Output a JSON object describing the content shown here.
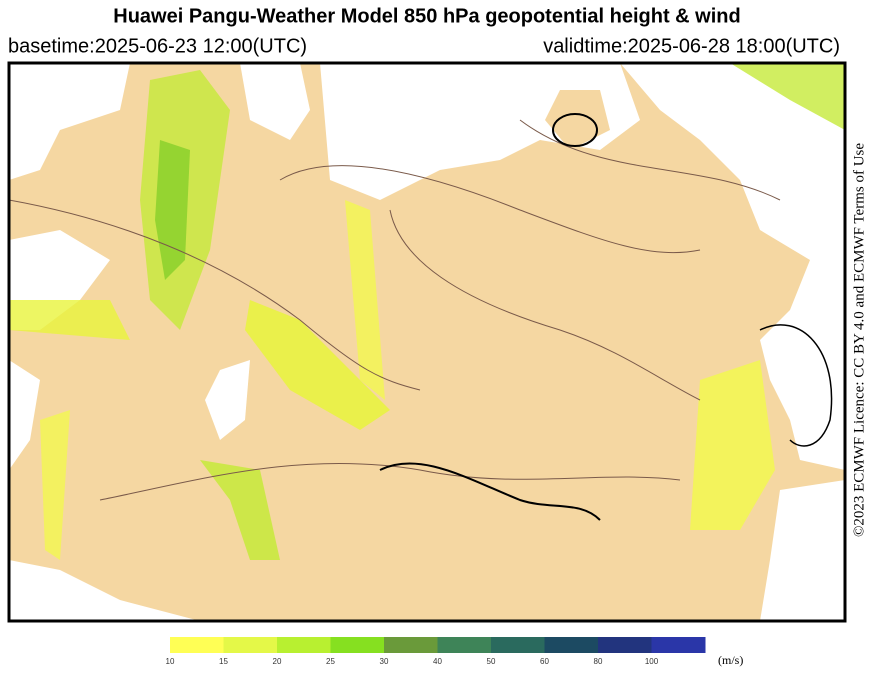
{
  "header": {
    "title": "Huawei Pangu-Weather Model 850 hPa geopotential height & wind",
    "basetime": "basetime:2025-06-23 12:00(UTC)",
    "validtime": "validtime:2025-06-28 18:00(UTC)"
  },
  "license": "©2023 ECMWF Licence: CC BY 4.0 and ECMWF Terms of Use",
  "colorbar": {
    "ticks": [
      "10",
      "15",
      "20",
      "25",
      "30",
      "40",
      "50",
      "60",
      "80",
      "100"
    ],
    "colors": [
      "#ffff55",
      "#e4f848",
      "#b8f030",
      "#86e020",
      "#6a9a3a",
      "#3e8458",
      "#2a6a5e",
      "#1c4a62",
      "#22347e",
      "#2a36a8"
    ],
    "unit": "(m/s)"
  }
}
